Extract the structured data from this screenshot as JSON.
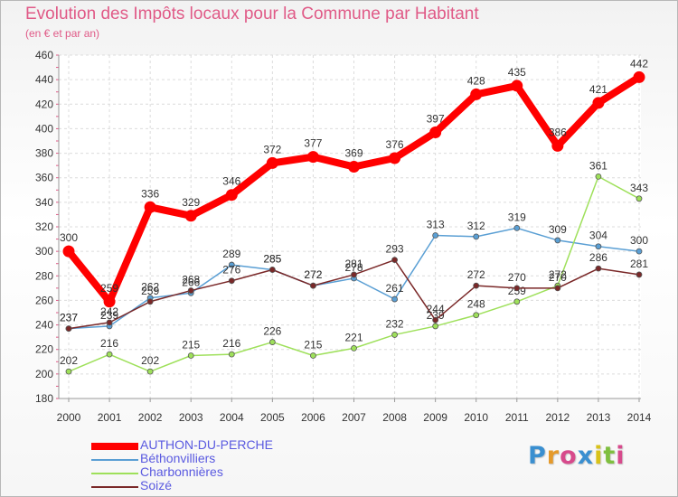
{
  "header": {
    "title": "Evolution des Impôts locaux pour la Commune par Habitant",
    "subtitle": "(en € et par an)"
  },
  "logo": {
    "letters": [
      "P",
      "r",
      "o",
      "x",
      "i",
      "t",
      "i"
    ],
    "colors": [
      "#3a8fd0",
      "#e59a2b",
      "#d74a8c",
      "#3a8fd0",
      "#d9c21a",
      "#7fbf3f",
      "#d74a8c"
    ]
  },
  "chart_data": {
    "type": "line",
    "title": "Evolution des Impôts locaux pour la Commune par Habitant",
    "subtitle": "(en € et par an)",
    "xlabel": "",
    "ylabel": "",
    "x": [
      "2000",
      "2001",
      "2002",
      "2003",
      "2004",
      "2005",
      "2006",
      "2007",
      "2008",
      "2009",
      "2010",
      "2011",
      "2012",
      "2013",
      "2014"
    ],
    "ylim": [
      180,
      460
    ],
    "yticks": [
      180,
      200,
      220,
      240,
      260,
      280,
      300,
      320,
      340,
      360,
      380,
      400,
      420,
      440,
      460
    ],
    "grid": true,
    "legend_position": "bottom-left",
    "series": [
      {
        "name": "AUTHON-DU-PERCHE",
        "values": [
          300,
          259,
          336,
          329,
          346,
          372,
          377,
          369,
          376,
          397,
          428,
          435,
          386,
          421,
          442
        ],
        "color": "#ff0000",
        "style": "thick"
      },
      {
        "name": "Béthonvilliers",
        "values": [
          237,
          239,
          262,
          266,
          289,
          285,
          272,
          278,
          261,
          313,
          312,
          319,
          309,
          304,
          300
        ],
        "color": "#5a9fd4",
        "style": "thin"
      },
      {
        "name": "Charbonnières",
        "values": [
          202,
          216,
          202,
          215,
          216,
          226,
          215,
          221,
          232,
          239,
          248,
          259,
          272,
          361,
          343
        ],
        "color": "#9ee05a",
        "style": "thin"
      },
      {
        "name": "Soizé",
        "values": [
          237,
          242,
          259,
          268,
          276,
          285,
          272,
          281,
          293,
          244,
          272,
          270,
          270,
          286,
          281
        ],
        "color": "#7a2828",
        "style": "thin"
      }
    ]
  }
}
